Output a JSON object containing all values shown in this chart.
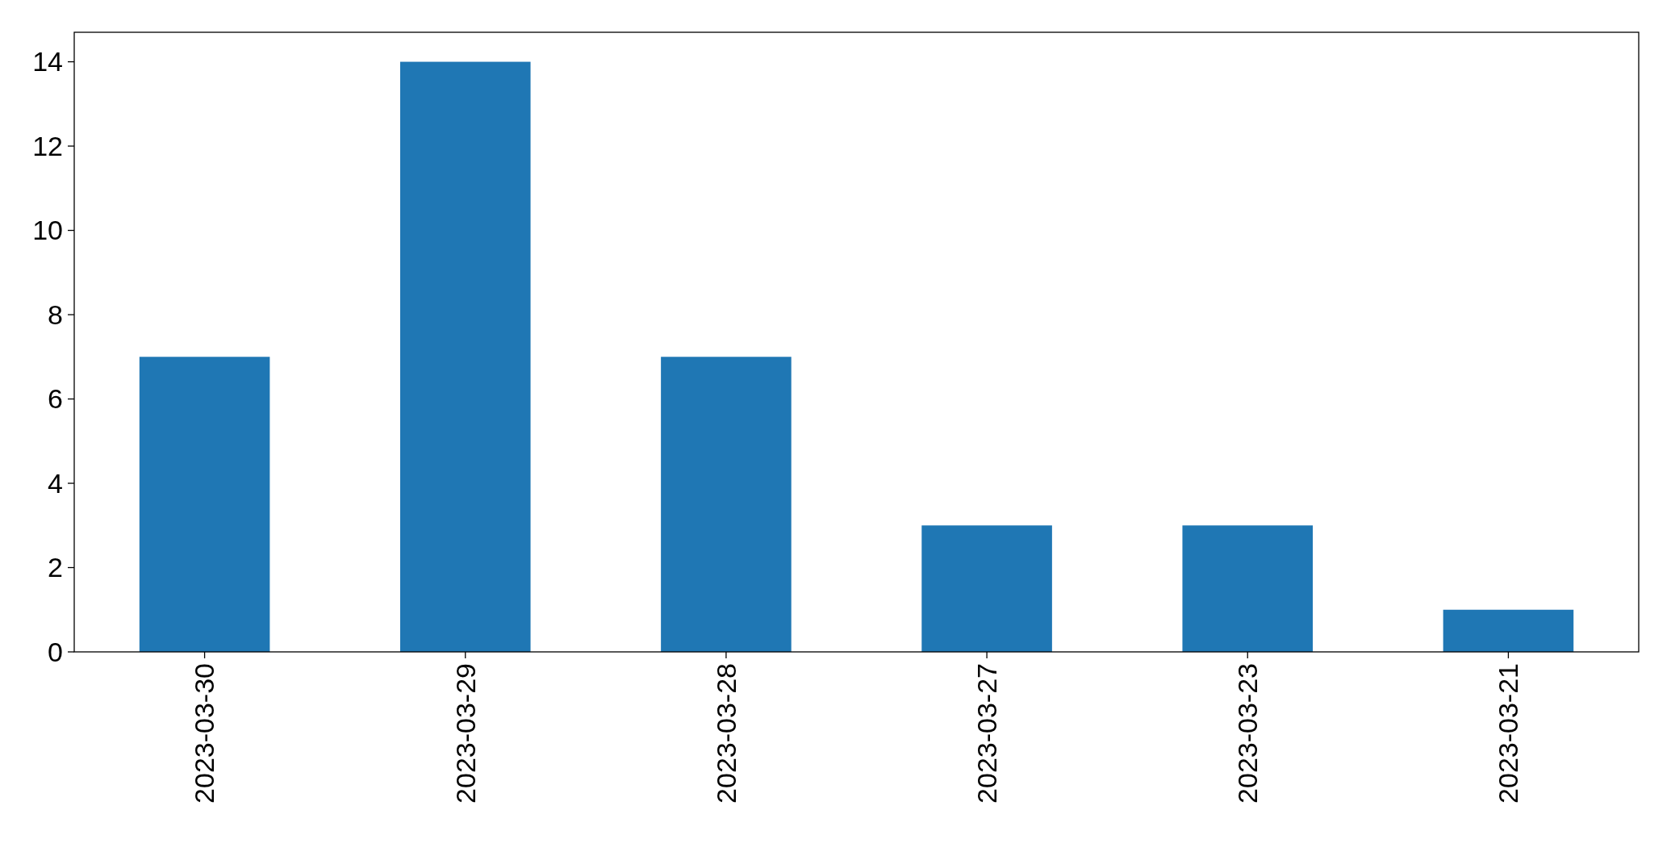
{
  "chart_data": {
    "type": "bar",
    "categories": [
      "2023-03-30",
      "2023-03-29",
      "2023-03-28",
      "2023-03-27",
      "2023-03-23",
      "2023-03-21"
    ],
    "values": [
      7,
      14,
      7,
      3,
      3,
      1
    ],
    "color": "#1f77b4",
    "ylim": [
      0,
      14.7
    ],
    "yticks": [
      0,
      2,
      4,
      6,
      8,
      10,
      12,
      14
    ],
    "grid": false
  }
}
